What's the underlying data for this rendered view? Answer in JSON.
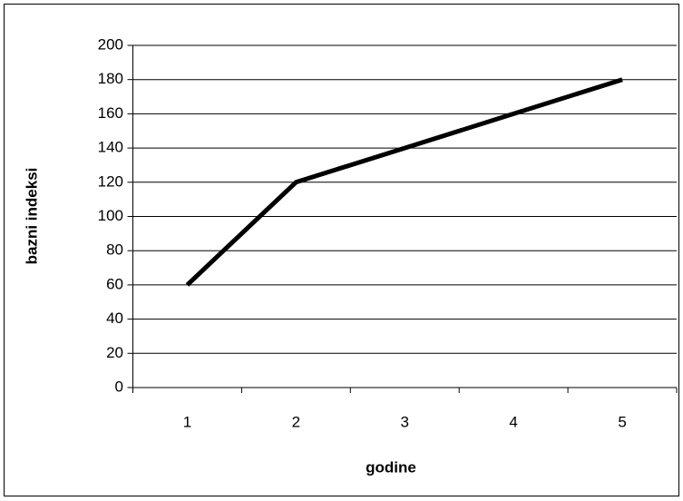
{
  "chart_data": {
    "type": "line",
    "x_label": "godine",
    "y_label": "bazni indeksi",
    "categories": [
      "1",
      "2",
      "3",
      "4",
      "5"
    ],
    "values": [
      60,
      120,
      140,
      160,
      180
    ],
    "color": "#000000",
    "ylim": [
      0,
      200
    ],
    "yticks": [
      0,
      20,
      40,
      60,
      80,
      100,
      120,
      140,
      160,
      180,
      200
    ],
    "grid": true
  }
}
